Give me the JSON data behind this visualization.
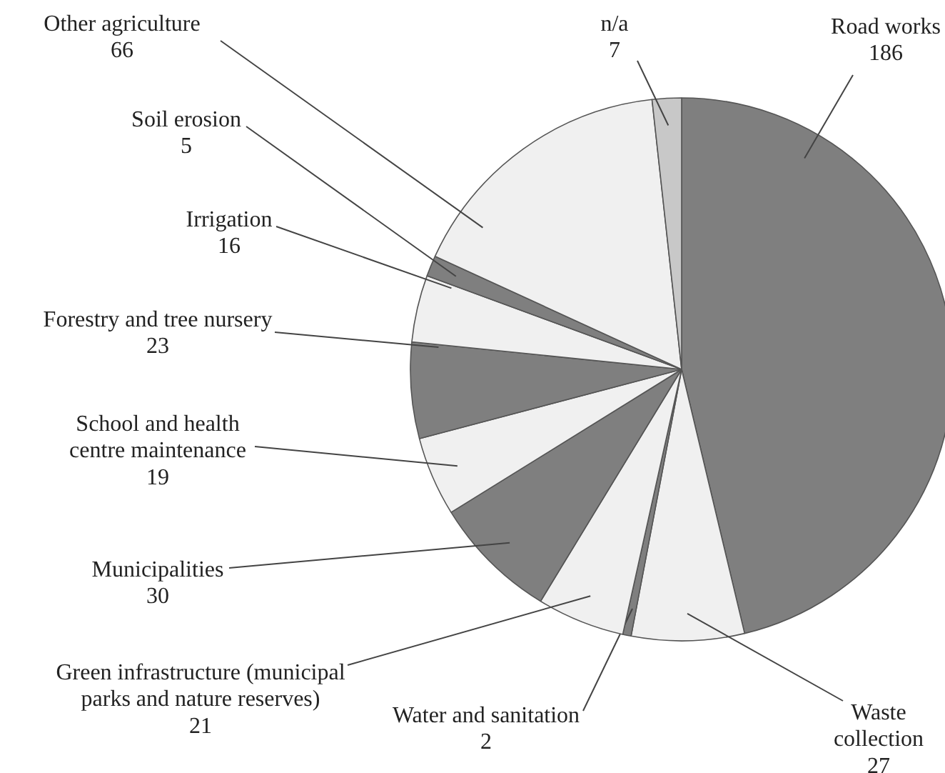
{
  "chart_data": {
    "type": "pie",
    "categories": [
      "Road works",
      "Waste\ncollection",
      "Water and sanitation",
      "Green infrastructure (municipal\nparks and nature reserves)",
      "Municipalities",
      "School and health\ncentre maintenance",
      "Forestry and tree nursery",
      "Irrigation",
      "Soil erosion",
      "Other agriculture",
      "n/a"
    ],
    "values": [
      186,
      27,
      2,
      21,
      30,
      19,
      23,
      16,
      5,
      66,
      7
    ],
    "colors": [
      "#7f7f7f",
      "#f0f0f0",
      "#7f7f7f",
      "#f0f0f0",
      "#7f7f7f",
      "#f0f0f0",
      "#7f7f7f",
      "#f0f0f0",
      "#7f7f7f",
      "#f0f0f0",
      "#c8c8c8"
    ],
    "data_labels": true
  }
}
